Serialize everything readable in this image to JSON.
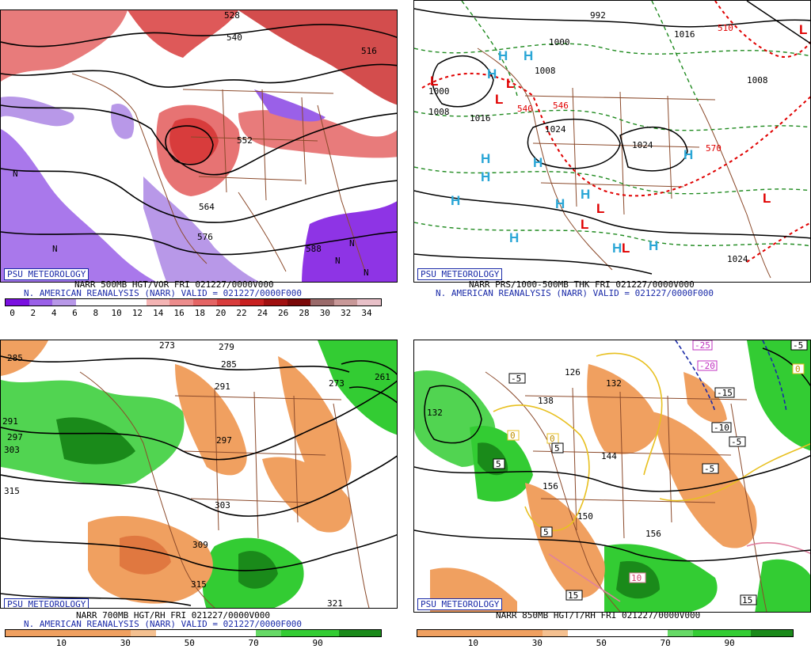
{
  "panels": [
    {
      "badge": "PSU METEOROLOGY",
      "caption1": "NARR 500MB HGT/VOR FRI 021227/0000V000",
      "caption2": "N. AMERICAN REANALYSIS (NARR) VALID = 021227/0000F000",
      "contour_labels": [
        "528",
        "540",
        "552",
        "516",
        "564",
        "576",
        "588",
        "N",
        "N",
        "N",
        "N",
        "N"
      ],
      "colorbar_colors": [
        "#7a10e0",
        "#9a60e8",
        "#b898e8",
        "#ffffff",
        "#ffffff",
        "#ffffff",
        "#f4b4b4",
        "#ec8c8c",
        "#e46464",
        "#d83c3c",
        "#c82020",
        "#a01010",
        "#7a0808",
        "#9a6a6a",
        "#c89898",
        "#e8c0c8"
      ],
      "colorbar_ticks": [
        "0",
        "2",
        "4",
        "6",
        "8",
        "10",
        "12",
        "14",
        "16",
        "18",
        "20",
        "22",
        "24",
        "26",
        "28",
        "30",
        "32",
        "34"
      ]
    },
    {
      "badge": "PSU METEOROLOGY",
      "caption1": "NARR PRS/1000-500MB THK FRI 021227/0000V000",
      "caption2": "N. AMERICAN REANALYSIS (NARR) VALID = 021227/0000F000",
      "contour_labels": [
        "992",
        "1000",
        "1008",
        "1016",
        "1024",
        "1024",
        "1008",
        "1016",
        "1008",
        "1000",
        "1024",
        "540",
        "546",
        "510",
        "570"
      ],
      "highs": [
        "H",
        "H",
        "H",
        "H",
        "H",
        "H",
        "H",
        "H",
        "H",
        "H",
        "H",
        "H",
        "H"
      ],
      "lows": [
        "L",
        "L",
        "L",
        "L",
        "L",
        "L",
        "L",
        "L"
      ]
    },
    {
      "badge": "PSU METEOROLOGY",
      "caption1": "NARR 700MB HGT/RH FRI 021227/0000V000",
      "caption2": "N. AMERICAN REANALYSIS (NARR) VALID = 021227/0000F000",
      "contour_labels": [
        "285",
        "273",
        "279",
        "285",
        "291",
        "297",
        "303",
        "309",
        "315",
        "321",
        "261",
        "273",
        "291",
        "297",
        "303",
        "315"
      ],
      "colorbar_ticks": [
        "10",
        "30",
        "50",
        "70",
        "90"
      ]
    },
    {
      "badge": "PSU METEOROLOGY",
      "caption1": "NARR 850MB HGT/T/RH FRI 021227/0000V000",
      "contour_labels": [
        "126",
        "132",
        "138",
        "144",
        "150",
        "156",
        "156",
        "132"
      ],
      "temp_labels": [
        "-25",
        "-20",
        "-15",
        "-10",
        "-5",
        "-5",
        "-5",
        "-5",
        "0",
        "0",
        "0",
        "5",
        "5",
        "5",
        "10",
        "15",
        "15"
      ],
      "colorbar_ticks": [
        "10",
        "30",
        "50",
        "70",
        "90"
      ]
    }
  ],
  "colors": {
    "badge_blue": "#1a2aa8",
    "border_brown": "#8b4a2b",
    "contour": "#000000",
    "green_dash": "#1f8a1f",
    "red_dash": "#e00000",
    "high_cyan": "#2aa6d6",
    "low_red": "#e00000",
    "rh_dry": "#f0a060",
    "rh_moist": "#33cc33",
    "rh_moist_dark": "#1a8a1a"
  }
}
